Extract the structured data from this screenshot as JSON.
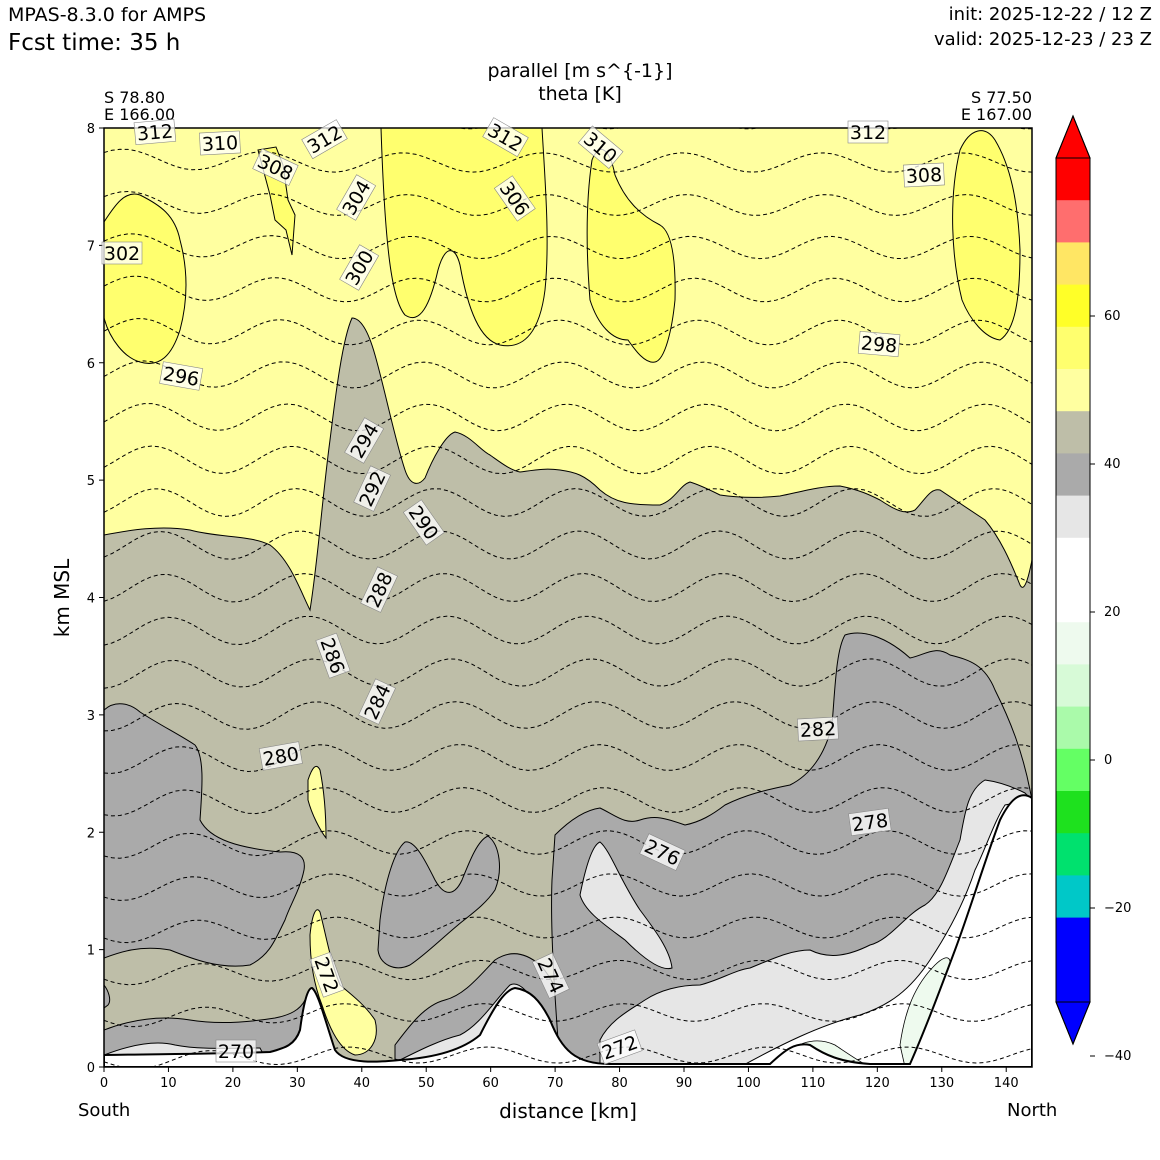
{
  "header": {
    "model": "MPAS-8.3.0 for AMPS",
    "fcst_time": "Fcst time:   35 h",
    "init": "init: 2025-12-22 / 12 Z",
    "valid": "valid: 2025-12-23 / 23 Z"
  },
  "plot": {
    "title_line1": "parallel [m s^{-1}]",
    "title_line2": "theta [K]",
    "left_lat": "S 78.80",
    "left_lon": "E 166.00",
    "right_lat": "S 77.50",
    "right_lon": "E 167.00",
    "xlabel": "distance [km]",
    "ylabel": "km MSL",
    "x_left_label": "South",
    "x_right_label": "North"
  },
  "chart_data": {
    "type": "cross-section contour",
    "title": "parallel [m s^{-1}] / theta [K]",
    "xlabel": "distance [km]",
    "ylabel": "km MSL",
    "xlim": [
      0,
      144
    ],
    "ylim": [
      0,
      8
    ],
    "x_ticks": [
      0,
      10,
      20,
      30,
      40,
      50,
      60,
      70,
      80,
      90,
      100,
      110,
      120,
      130,
      140
    ],
    "y_ticks": [
      0,
      1,
      2,
      3,
      4,
      5,
      6,
      7,
      8
    ],
    "filled_field": "parallel wind speed [m s^-1]",
    "colorbar": {
      "levels": [
        -60,
        -55,
        -50,
        -45,
        -40,
        -35,
        -30,
        -25,
        -20,
        -15,
        -10,
        -5,
        0,
        5,
        10,
        15,
        20,
        25,
        30,
        35,
        40,
        45,
        50,
        55,
        60
      ],
      "tick_labels": [
        "60",
        "40",
        "20",
        "0",
        "−20",
        "−40"
      ],
      "tick_values": [
        60,
        40,
        20,
        0,
        -20,
        -40
      ],
      "under_color": "#0000ff",
      "over_color": "#ff0000",
      "colors": [
        "#0000ff",
        "#0000ff",
        "#00c8c8",
        "#00e16e",
        "#1ee11e",
        "#64ff64",
        "#aafaaa",
        "#d7fad7",
        "#eefaee",
        "#ffffff",
        "#ffffff",
        "#e6e6e6",
        "#aaaaaa",
        "#bebea8",
        "#ffffa0",
        "#ffff6e",
        "#ffff28",
        "#ffe664",
        "#ff6e6e",
        "#ff0000"
      ]
    },
    "contour_field": "theta [K]",
    "contour_labels": [
      "312",
      "310",
      "308",
      "312",
      "304",
      "312",
      "306",
      "310",
      "312",
      "308",
      "302",
      "300",
      "298",
      "296",
      "294",
      "292",
      "290",
      "288",
      "286",
      "284",
      "282",
      "280",
      "278",
      "276",
      "274",
      "272",
      "272",
      "270"
    ]
  },
  "colors": {
    "yellow_light": "#ffffa0",
    "yellow_mid": "#ffff6e",
    "olive": "#bebea8",
    "gray": "#aaaaaa",
    "lightgray": "#e6e6e6",
    "terrain": "#ffffff"
  }
}
